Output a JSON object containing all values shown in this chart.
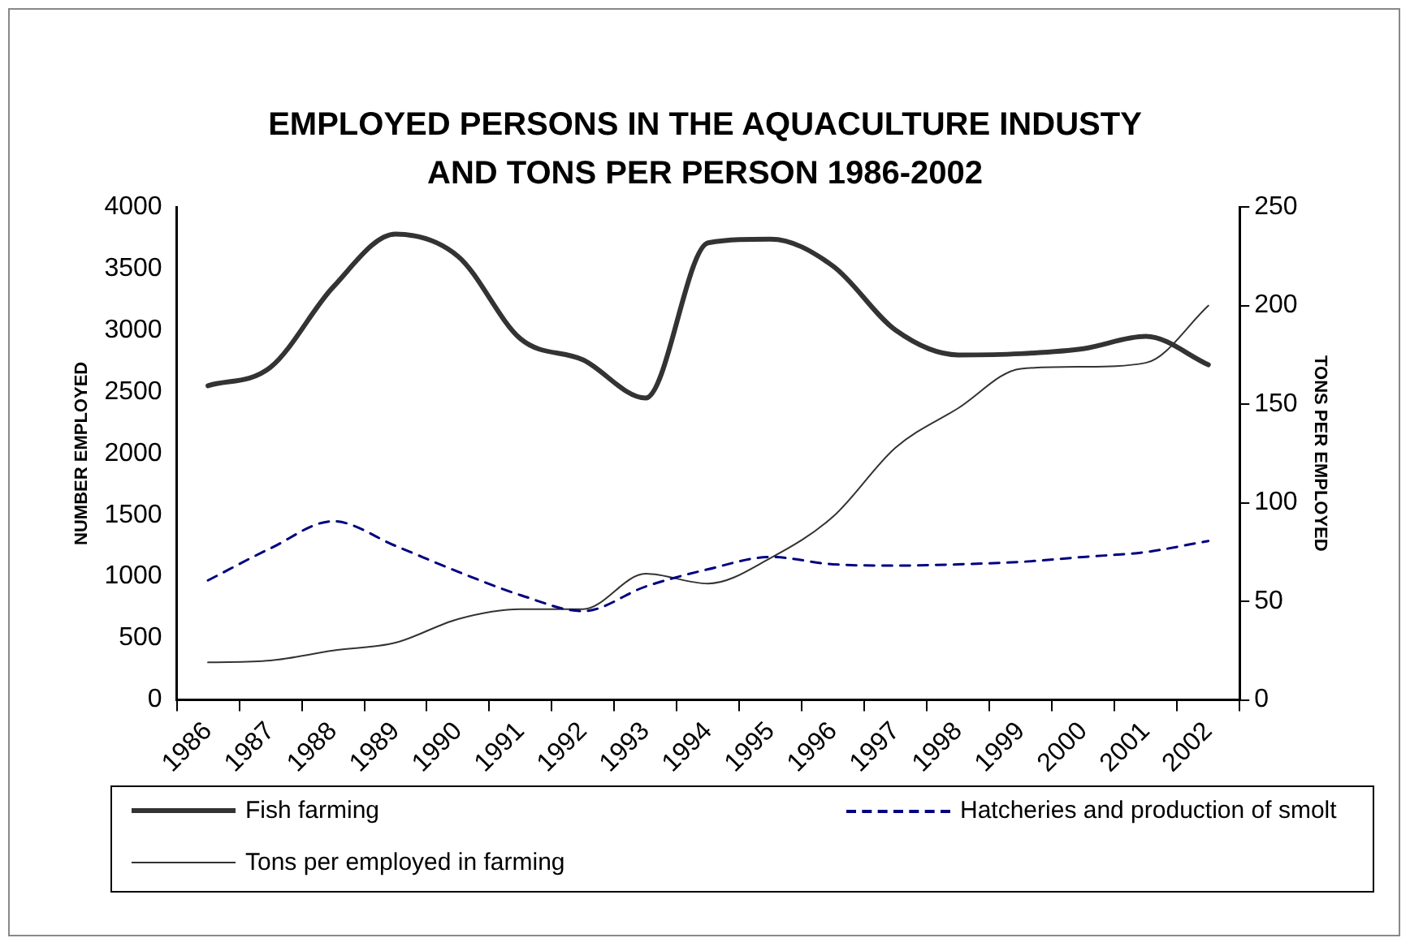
{
  "chart_data": {
    "type": "line",
    "title": "EMPLOYED PERSONS IN THE AQUACULTURE INDUSTY AND TONS PER PERSON 1986-2002",
    "ylabel": "NUMBER EMPLOYED",
    "y2label": "TONS PER EMPLOYED",
    "categories": [
      "1986",
      "1987",
      "1988",
      "1989",
      "1990",
      "1991",
      "1992",
      "1993",
      "1994",
      "1995",
      "1996",
      "1997",
      "1998",
      "1999",
      "2000",
      "2001",
      "2002"
    ],
    "series": [
      {
        "name": "Fish farming",
        "color": "#333333",
        "line_style": "solid",
        "values": [
          2550,
          2700,
          3350,
          3780,
          3600,
          2930,
          2760,
          2450,
          3710,
          3740,
          3520,
          3000,
          2800,
          2810,
          2850,
          2950,
          2720
        ]
      },
      {
        "name": "Hatcheries and production of smolt",
        "color": "#000080",
        "line_style": "dashed",
        "values": [
          970,
          1230,
          1450,
          1250,
          1040,
          850,
          720,
          920,
          1060,
          1160,
          1100,
          1090,
          1100,
          1120,
          1160,
          1200,
          1290
        ]
      },
      {
        "name": "Tons per employed in farming",
        "color": "#333333",
        "line_style": "solid",
        "axis": "y2",
        "values": [
          19,
          20,
          25,
          29,
          41,
          46,
          46,
          64,
          59,
          72,
          93,
          128,
          148,
          168,
          169,
          171,
          200
        ]
      }
    ],
    "ylim": [
      0,
      4000
    ],
    "yticks": [
      0,
      500,
      1000,
      1500,
      2000,
      2500,
      3000,
      3500,
      4000
    ],
    "y2lim": [
      0,
      250
    ],
    "y2ticks": [
      0,
      50,
      100,
      150,
      200,
      250
    ],
    "marker": "none",
    "legend": "bottom"
  }
}
